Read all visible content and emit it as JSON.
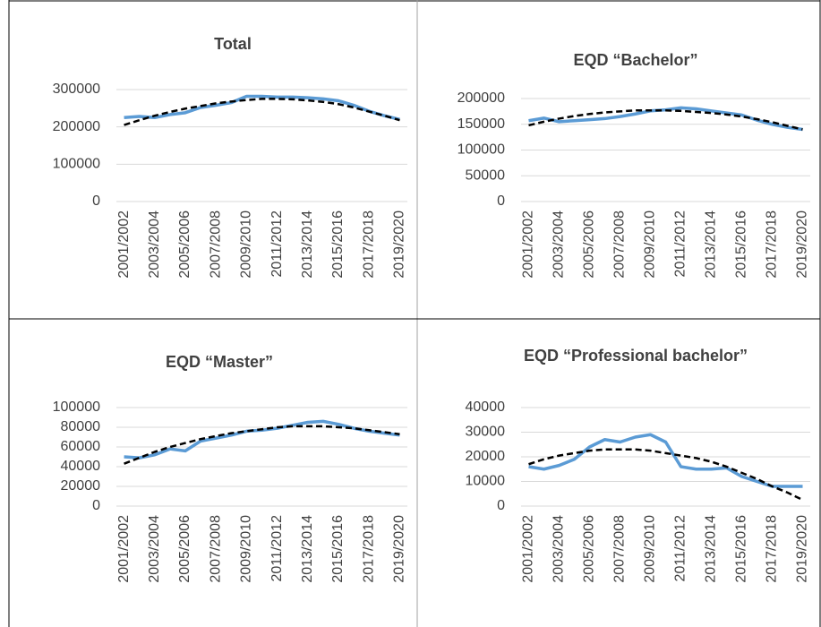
{
  "chart_data": [
    {
      "type": "line",
      "title": "Total",
      "categories": [
        "2001/2002",
        null,
        "2003/2004",
        null,
        "2005/2006",
        null,
        "2007/2008",
        null,
        "2009/2010",
        null,
        "2011/2012",
        null,
        "2013/2014",
        null,
        "2015/2016",
        null,
        "2017/2018",
        null,
        "2019/2020"
      ],
      "series": [
        {
          "color": "#5b9bd5",
          "values": [
            225000,
            228000,
            225000,
            233000,
            238000,
            252000,
            258000,
            265000,
            282000,
            282000,
            280000,
            280000,
            278000,
            275000,
            270000,
            258000,
            242000,
            230000,
            220000
          ]
        },
        {
          "color": "#000000",
          "dash": true,
          "values": [
            205000,
            218000,
            230000,
            240000,
            249000,
            256000,
            263000,
            268000,
            272000,
            275000,
            275000,
            274000,
            271000,
            267000,
            261000,
            252000,
            241000,
            230000,
            218000
          ]
        }
      ],
      "ylim": [
        0,
        300000
      ],
      "yticks": [
        0,
        100000,
        200000,
        300000
      ],
      "grid": true
    },
    {
      "type": "line",
      "title": "EQD “Bachelor”",
      "categories": [
        "2001/2002",
        null,
        "2003/2004",
        null,
        "2005/2006",
        null,
        "2007/2008",
        null,
        "2009/2010",
        null,
        "2011/2012",
        null,
        "2013/2014",
        null,
        "2015/2016",
        null,
        "2017/2018",
        null,
        "2019/2020"
      ],
      "series": [
        {
          "color": "#5b9bd5",
          "values": [
            157000,
            162000,
            155000,
            157000,
            159000,
            161000,
            165000,
            170000,
            176000,
            178000,
            182000,
            180000,
            176000,
            172000,
            168000,
            158000,
            150000,
            144000,
            140000
          ]
        },
        {
          "color": "#000000",
          "dash": true,
          "values": [
            148000,
            155000,
            161000,
            166000,
            170000,
            173000,
            175000,
            177000,
            177000,
            177000,
            176000,
            174000,
            172000,
            169000,
            165000,
            160000,
            154000,
            147000,
            140000
          ]
        }
      ],
      "ylim": [
        0,
        200000
      ],
      "yticks": [
        0,
        50000,
        100000,
        150000,
        200000
      ],
      "grid": true
    },
    {
      "type": "line",
      "title": "EQD “Master”",
      "categories": [
        "2001/2002",
        null,
        "2003/2004",
        null,
        "2005/2006",
        null,
        "2007/2008",
        null,
        "2009/2010",
        null,
        "2011/2012",
        null,
        "2013/2014",
        null,
        "2015/2016",
        null,
        "2017/2018",
        null,
        "2019/2020"
      ],
      "series": [
        {
          "color": "#5b9bd5",
          "values": [
            50000,
            49000,
            52000,
            58000,
            56000,
            66000,
            69000,
            72000,
            76000,
            77000,
            79000,
            82000,
            85000,
            86000,
            83000,
            79000,
            76000,
            74000,
            72000
          ]
        },
        {
          "color": "#000000",
          "dash": true,
          "values": [
            43000,
            49000,
            55000,
            60000,
            64000,
            68000,
            71000,
            74000,
            76000,
            78000,
            80000,
            81000,
            81000,
            81000,
            80000,
            79000,
            77000,
            75000,
            73000
          ]
        }
      ],
      "ylim": [
        0,
        100000
      ],
      "yticks": [
        0,
        20000,
        40000,
        60000,
        80000,
        100000
      ],
      "grid": true
    },
    {
      "type": "line",
      "title": "EQD “Professional bachelor”",
      "categories": [
        "2001/2002",
        null,
        "2003/2004",
        null,
        "2005/2006",
        null,
        "2007/2008",
        null,
        "2009/2010",
        null,
        "2011/2012",
        null,
        "2013/2014",
        null,
        "2015/2016",
        null,
        "2017/2018",
        null,
        "2019/2020"
      ],
      "series": [
        {
          "color": "#5b9bd5",
          "values": [
            16000,
            15000,
            16500,
            19000,
            24000,
            27000,
            26000,
            28000,
            29000,
            26000,
            16000,
            15000,
            15000,
            15500,
            12000,
            10000,
            8000,
            8000,
            8000
          ]
        },
        {
          "color": "#000000",
          "dash": true,
          "values": [
            17000,
            19000,
            20500,
            21500,
            22500,
            23000,
            23000,
            23000,
            22500,
            21500,
            20500,
            19500,
            18000,
            16000,
            13500,
            11000,
            8000,
            5500,
            2500
          ]
        }
      ],
      "ylim": [
        0,
        40000
      ],
      "yticks": [
        0,
        10000,
        20000,
        30000,
        40000
      ],
      "grid": true
    }
  ]
}
